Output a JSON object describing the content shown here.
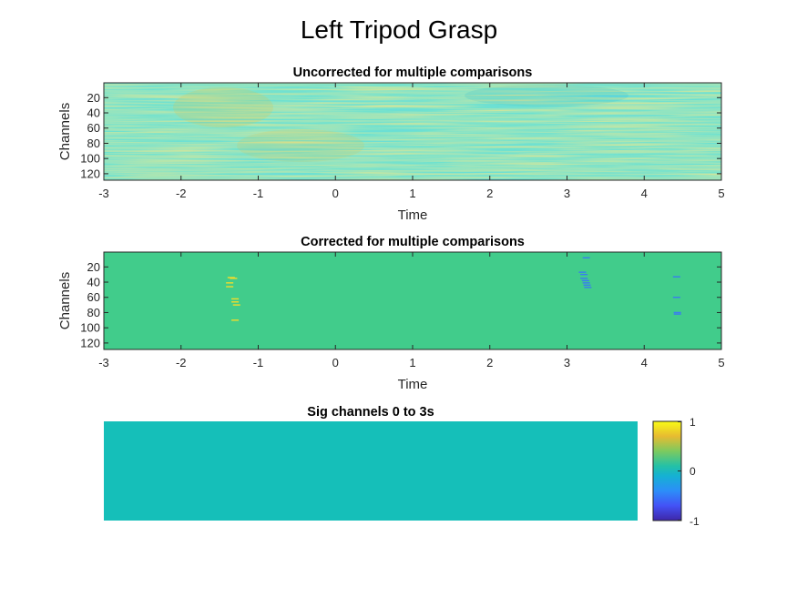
{
  "figure": {
    "title": "Left Tripod Grasp"
  },
  "chart_data": [
    {
      "type": "heatmap",
      "title": "Uncorrected for multiple comparisons",
      "xlabel": "Time",
      "ylabel": "Channels",
      "xlim": [
        -3,
        5
      ],
      "ylim": [
        1,
        128
      ],
      "y_reversed": true,
      "x_ticks": [
        "-3",
        "-2",
        "-1",
        "0",
        "1",
        "2",
        "3",
        "4",
        "5"
      ],
      "y_ticks": [
        "20",
        "40",
        "60",
        "80",
        "100",
        "120"
      ],
      "n_channels": 128,
      "colormap": "parula",
      "clim": [
        -1,
        1
      ],
      "values_description_note": null
    },
    {
      "type": "heatmap",
      "title": "Corrected for multiple comparisons",
      "xlabel": "Time",
      "ylabel": "Channels",
      "xlim": [
        -3,
        5
      ],
      "ylim": [
        1,
        128
      ],
      "y_reversed": true,
      "x_ticks": [
        "-3",
        "-2",
        "-1",
        "0",
        "1",
        "2",
        "3",
        "4",
        "5"
      ],
      "y_ticks": [
        "20",
        "40",
        "60",
        "80",
        "100",
        "120"
      ],
      "background_value": 0,
      "colormap": "parula",
      "clim": [
        -1,
        1
      ],
      "significant_cells": [
        {
          "t": -1.35,
          "channel": 34,
          "value": 1
        },
        {
          "t": -1.32,
          "channel": 35,
          "value": 1
        },
        {
          "t": -1.37,
          "channel": 41,
          "value": 1
        },
        {
          "t": -1.37,
          "channel": 46,
          "value": 1
        },
        {
          "t": -1.3,
          "channel": 62,
          "value": 1
        },
        {
          "t": -1.3,
          "channel": 66,
          "value": 1
        },
        {
          "t": -1.28,
          "channel": 70,
          "value": 1
        },
        {
          "t": -1.3,
          "channel": 90,
          "value": 1
        },
        {
          "t": 3.25,
          "channel": 8,
          "value": -1
        },
        {
          "t": 3.2,
          "channel": 27,
          "value": -1
        },
        {
          "t": 3.22,
          "channel": 30,
          "value": -1
        },
        {
          "t": 3.22,
          "channel": 35,
          "value": -1
        },
        {
          "t": 3.24,
          "channel": 38,
          "value": -1
        },
        {
          "t": 3.25,
          "channel": 41,
          "value": -1
        },
        {
          "t": 3.26,
          "channel": 44,
          "value": -1
        },
        {
          "t": 3.27,
          "channel": 47,
          "value": -1
        },
        {
          "t": 4.42,
          "channel": 33,
          "value": -1
        },
        {
          "t": 4.42,
          "channel": 60,
          "value": -1
        },
        {
          "t": 4.43,
          "channel": 80,
          "value": -1
        },
        {
          "t": 4.43,
          "channel": 82,
          "value": -1
        }
      ]
    },
    {
      "type": "heatmap",
      "title": "Sig channels 0 to 3s",
      "value": 0,
      "colormap": "parula",
      "clim": [
        -1,
        1
      ],
      "colorbar_ticks": [
        "1",
        "0",
        "-1"
      ]
    }
  ]
}
